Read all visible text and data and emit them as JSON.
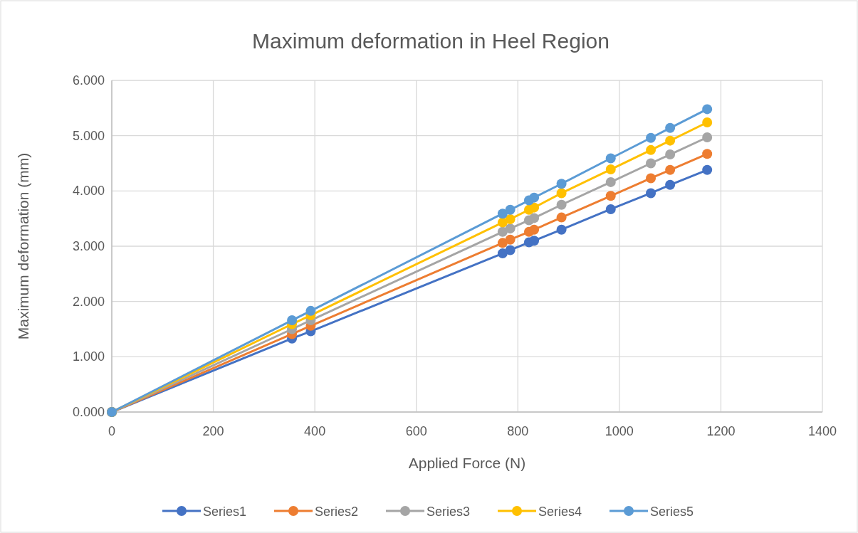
{
  "chart_data": {
    "type": "line",
    "title": "Maximum deformation in Heel Region",
    "xlabel": "Applied Force (N)",
    "ylabel": "Maximum deformation (mm)",
    "x": [
      0,
      355,
      392,
      770,
      785,
      822,
      832,
      886,
      983,
      1062,
      1100,
      1173
    ],
    "series": [
      {
        "name": "Series1",
        "color": "#4472c4",
        "values": [
          0,
          1.33,
          1.46,
          2.87,
          2.93,
          3.07,
          3.1,
          3.3,
          3.67,
          3.96,
          4.11,
          4.38
        ]
      },
      {
        "name": "Series2",
        "color": "#ed7d31",
        "values": [
          0,
          1.41,
          1.56,
          3.06,
          3.12,
          3.26,
          3.3,
          3.52,
          3.91,
          4.23,
          4.38,
          4.67
        ]
      },
      {
        "name": "Series3",
        "color": "#a5a5a5",
        "values": [
          0,
          1.5,
          1.66,
          3.26,
          3.32,
          3.47,
          3.51,
          3.75,
          4.16,
          4.5,
          4.66,
          4.97
        ]
      },
      {
        "name": "Series4",
        "color": "#ffc000",
        "values": [
          0,
          1.59,
          1.75,
          3.43,
          3.49,
          3.66,
          3.7,
          3.96,
          4.39,
          4.74,
          4.91,
          5.24
        ]
      },
      {
        "name": "Series5",
        "color": "#5b9bd5",
        "values": [
          0,
          1.66,
          1.83,
          3.59,
          3.66,
          3.83,
          3.88,
          4.13,
          4.59,
          4.96,
          5.14,
          5.48
        ]
      }
    ],
    "xlim": [
      0,
      1400
    ],
    "xticks": [
      0,
      200,
      400,
      600,
      800,
      1000,
      1200,
      1400
    ],
    "ylim": [
      0,
      6
    ],
    "yticks": [
      {
        "value": 0,
        "label": "0.000"
      },
      {
        "value": 1,
        "label": "1.000"
      },
      {
        "value": 2,
        "label": "2.000"
      },
      {
        "value": 3,
        "label": "3.000"
      },
      {
        "value": 4,
        "label": "4.000"
      },
      {
        "value": 5,
        "label": "5.000"
      },
      {
        "value": 6,
        "label": "6.000"
      }
    ],
    "grid": true,
    "legend": "bottom",
    "marker": "circle",
    "line_style": "solid"
  }
}
